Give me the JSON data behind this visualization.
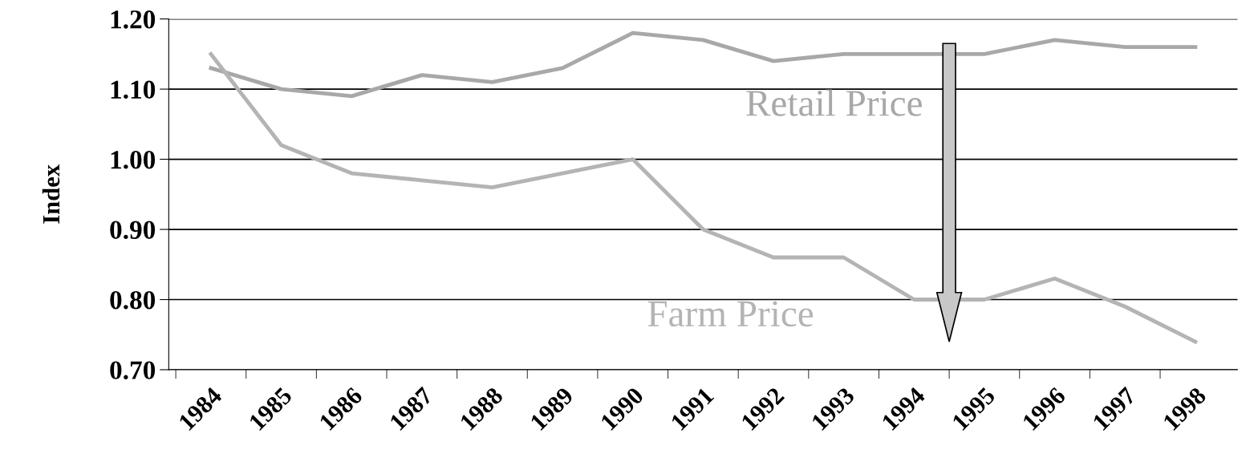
{
  "chart_data": {
    "type": "line",
    "ylabel": "Index",
    "categories": [
      "1984",
      "1985",
      "1986",
      "1987",
      "1988",
      "1989",
      "1990",
      "1991",
      "1992",
      "1993",
      "1994",
      "1995",
      "1996",
      "1997",
      "1998"
    ],
    "series": [
      {
        "name": "Retail Price",
        "color": "#a8a8a8",
        "values": [
          1.13,
          1.1,
          1.09,
          1.12,
          1.11,
          1.13,
          1.18,
          1.17,
          1.14,
          1.15,
          1.15,
          1.15,
          1.17,
          1.16,
          1.16
        ]
      },
      {
        "name": "Farm Price",
        "color": "#b4b4b4",
        "values": [
          1.15,
          1.02,
          0.98,
          0.97,
          0.96,
          0.98,
          1.0,
          0.9,
          0.86,
          0.86,
          0.8,
          0.8,
          0.83,
          0.79,
          0.74
        ]
      }
    ],
    "ylim": [
      0.7,
      1.2
    ],
    "yticks": [
      {
        "value": 0.7,
        "label": "0.70"
      },
      {
        "value": 0.8,
        "label": "0.80"
      },
      {
        "value": 0.9,
        "label": "0.90"
      },
      {
        "value": 1.0,
        "label": "1.00"
      },
      {
        "value": 1.1,
        "label": "1.10"
      },
      {
        "value": 1.2,
        "label": "1.20"
      }
    ],
    "grid": "y",
    "legend": false,
    "marker": "none",
    "line_style": "solid"
  }
}
